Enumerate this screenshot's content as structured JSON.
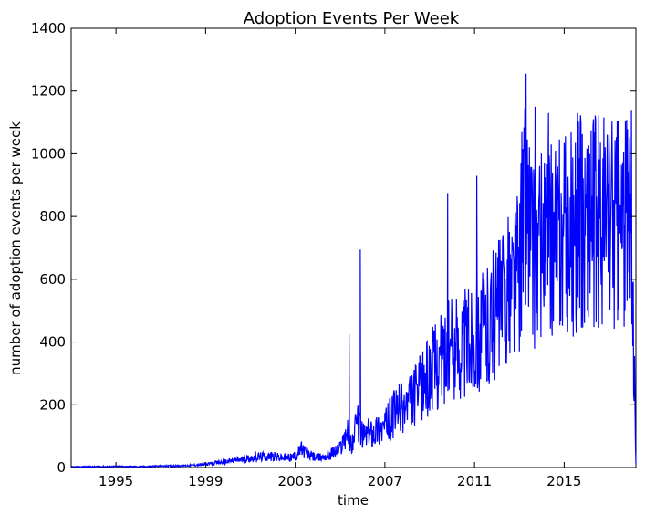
{
  "chart_data": {
    "type": "line",
    "title": "Adoption Events Per Week",
    "xlabel": "time",
    "ylabel": "number of adoption events per week",
    "xlim": [
      1993.0,
      2018.2
    ],
    "ylim": [
      0,
      1400
    ],
    "xticks": [
      "1995",
      "1999",
      "2003",
      "2007",
      "2011",
      "2015"
    ],
    "yticks": [
      "0",
      "200",
      "400",
      "600",
      "800",
      "1000",
      "1200",
      "1400"
    ],
    "grid": false,
    "series_color": "#0000ff",
    "series": [
      {
        "x": [
          1993.0,
          1994.0,
          1995.0,
          1996.0,
          1997.0,
          1998.0,
          1999.0,
          1999.5,
          2000.0,
          2000.5,
          2001.0,
          2001.5,
          2002.0,
          2002.5,
          2003.0,
          2003.3,
          2003.6,
          2004.0,
          2004.5,
          2005.0,
          2005.3,
          2005.5,
          2005.8,
          2006.0,
          2006.5,
          2007.0,
          2007.5,
          2008.0,
          2008.5,
          2009.0,
          2009.5,
          2010.0,
          2010.5,
          2011.0,
          2011.5,
          2012.0,
          2012.5,
          2013.0,
          2013.3,
          2013.6,
          2014.0,
          2014.5,
          2015.0,
          2015.5,
          2016.0,
          2016.5,
          2017.0,
          2017.5,
          2018.0,
          2018.2
        ],
        "y": [
          2,
          3,
          4,
          3,
          5,
          6,
          10,
          15,
          20,
          25,
          30,
          35,
          35,
          30,
          35,
          60,
          40,
          30,
          40,
          60,
          120,
          70,
          150,
          100,
          120,
          130,
          180,
          200,
          240,
          300,
          350,
          380,
          400,
          420,
          450,
          500,
          560,
          650,
          900,
          680,
          700,
          720,
          740,
          760,
          800,
          790,
          810,
          780,
          800,
          10
        ],
        "peaks": [
          {
            "x": 2005.9,
            "y": 695
          },
          {
            "x": 2005.4,
            "y": 425
          },
          {
            "x": 2009.8,
            "y": 875
          },
          {
            "x": 2011.1,
            "y": 930
          },
          {
            "x": 2013.3,
            "y": 1255
          },
          {
            "x": 2013.7,
            "y": 1150
          },
          {
            "x": 2014.3,
            "y": 1130
          },
          {
            "x": 2015.6,
            "y": 1130
          },
          {
            "x": 2016.2,
            "y": 1075
          },
          {
            "x": 2017.0,
            "y": 1060
          }
        ]
      }
    ]
  }
}
